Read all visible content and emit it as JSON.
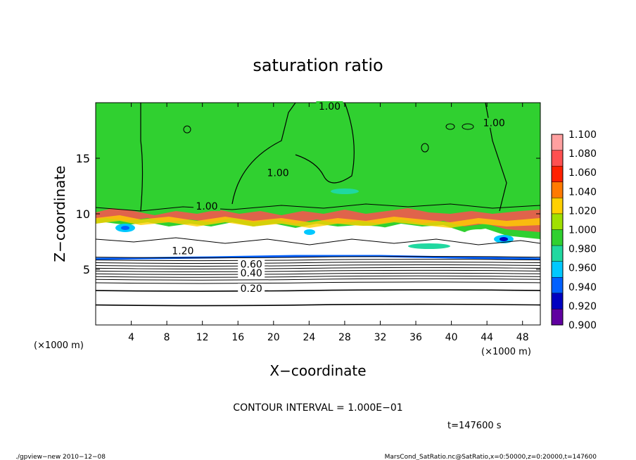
{
  "chart_data": {
    "type": "heatmap",
    "title": "saturation ratio",
    "xlabel": "X−coordinate",
    "ylabel": "Z−coordinate",
    "x_unit_left": "(×1000 m)",
    "x_unit_right": "(×1000 m)",
    "xlim": [
      0,
      50
    ],
    "ylim": [
      0,
      20
    ],
    "x_ticks": [
      4,
      8,
      12,
      16,
      20,
      24,
      28,
      32,
      36,
      40,
      44,
      48
    ],
    "y_ticks": [
      5,
      10,
      15
    ],
    "colorbar": {
      "levels": [
        1.1,
        1.08,
        1.06,
        1.04,
        1.02,
        1.0,
        0.98,
        0.96,
        0.94,
        0.92,
        0.9
      ],
      "labels": [
        "1.100",
        "1.080",
        "1.060",
        "1.040",
        "1.020",
        "1.000",
        "0.980",
        "0.960",
        "0.940",
        "0.920",
        "0.900"
      ],
      "colors": [
        "#ffa0a0",
        "#ff5050",
        "#ff2000",
        "#ff7a00",
        "#ffd000",
        "#a0e000",
        "#30d030",
        "#20d8a0",
        "#00c8ff",
        "#0060ff",
        "#0000c0",
        "#6000a0"
      ]
    },
    "contour_labels": [
      {
        "text": "1.00",
        "x": 26.3,
        "y": 19.5
      },
      {
        "text": "1.00",
        "x": 44.8,
        "y": 18.0
      },
      {
        "text": "1.00",
        "x": 20.5,
        "y": 13.5
      },
      {
        "text": "1.00",
        "x": 12.5,
        "y": 10.5
      },
      {
        "text": "1.20",
        "x": 9.8,
        "y": 6.5
      },
      {
        "text": "0.60",
        "x": 17.5,
        "y": 5.3
      },
      {
        "text": "0.40",
        "x": 17.5,
        "y": 4.5
      },
      {
        "text": "0.20",
        "x": 17.5,
        "y": 3.1
      }
    ],
    "contour_interval": "CONTOUR INTERVAL = 1.000E−01",
    "time": "t=147600 s"
  },
  "footer": {
    "left": "./gpview−new  2010−12−08",
    "right": "MarsCond_SatRatio.nc@SatRatio,x=0:50000,z=0:20000,t=147600"
  }
}
